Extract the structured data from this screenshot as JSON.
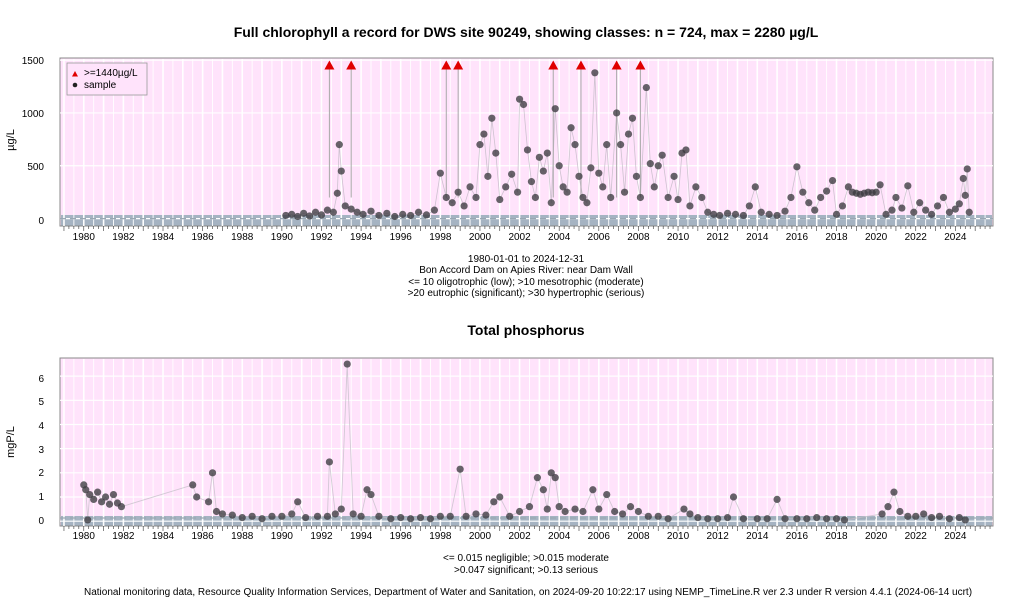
{
  "charts": {
    "chlorophyll": {
      "title": "Full chlorophyll a record for DWS site 90249, showing classes: n = 724, max = 2280 µg/L",
      "ylabel": "µg/L",
      "yticks": [
        "0",
        "500",
        "1000",
        "1500"
      ],
      "legend": [
        ">=1440µg/L",
        "sample"
      ],
      "caption_lines": [
        "1980-01-01 to 2024-12-31",
        "Bon Accord Dam on Apies River: near Dam Wall",
        "<= 10 oligotrophic (low); >10 mesotrophic (moderate)",
        ">20 eutrophic (significant); >30 hypertrophic (serious)"
      ]
    },
    "phosphorus": {
      "title": "Total phosphorus",
      "ylabel": "mgP/L",
      "yticks": [
        "0",
        "1",
        "2",
        "3",
        "4",
        "5",
        "6"
      ],
      "caption_lines": [
        "<= 0.015 negligible; >0.015 moderate",
        ">0.047 significant; >0.13 serious"
      ]
    },
    "xticks": [
      "1980",
      "1982",
      "1984",
      "1986",
      "1988",
      "1990",
      "1992",
      "1994",
      "1996",
      "1998",
      "2000",
      "2002",
      "2004",
      "2006",
      "2008",
      "2010",
      "2012",
      "2014",
      "2016",
      "2018",
      "2020",
      "2022",
      "2024"
    ]
  },
  "footer": "National monitoring data, Resource Quality Information Services, Department of Water and Sanitation, on 2024-09-20 10:22:17 using NEMP_TimeLine.R ver 2.3 under R version 4.4.1 (2024-06-14 ucrt)",
  "chart_data": [
    {
      "type": "scatter",
      "title": "Full chlorophyll a record for DWS site 90249, showing classes: n = 724, max = 2280 µg/L",
      "xlabel": "",
      "ylabel": "µg/L",
      "xlim": [
        1978.8,
        2025.9
      ],
      "ylim": [
        -70,
        1520
      ],
      "grid": true,
      "legend_position": "top-left",
      "series": [
        {
          "name": "sample",
          "points": [
            [
              1990.2,
              30
            ],
            [
              1990.5,
              40
            ],
            [
              1990.8,
              20
            ],
            [
              1991.1,
              50
            ],
            [
              1991.4,
              25
            ],
            [
              1991.7,
              60
            ],
            [
              1992.0,
              35
            ],
            [
              1992.3,
              80
            ],
            [
              1992.6,
              60
            ],
            [
              1992.8,
              240
            ],
            [
              1992.9,
              700
            ],
            [
              1993.0,
              450
            ],
            [
              1993.2,
              120
            ],
            [
              1993.5,
              90
            ],
            [
              1993.8,
              60
            ],
            [
              1994.1,
              40
            ],
            [
              1994.5,
              70
            ],
            [
              1994.9,
              30
            ],
            [
              1995.3,
              50
            ],
            [
              1995.7,
              20
            ],
            [
              1996.1,
              40
            ],
            [
              1996.5,
              30
            ],
            [
              1996.9,
              60
            ],
            [
              1997.3,
              35
            ],
            [
              1997.7,
              80
            ],
            [
              1998.0,
              430
            ],
            [
              1998.3,
              200
            ],
            [
              1998.6,
              150
            ],
            [
              1998.9,
              250
            ],
            [
              1999.2,
              120
            ],
            [
              1999.5,
              300
            ],
            [
              1999.8,
              200
            ],
            [
              2000.0,
              700
            ],
            [
              2000.2,
              800
            ],
            [
              2000.4,
              400
            ],
            [
              2000.6,
              950
            ],
            [
              2000.8,
              620
            ],
            [
              2001.0,
              180
            ],
            [
              2001.3,
              300
            ],
            [
              2001.6,
              420
            ],
            [
              2001.9,
              250
            ],
            [
              2002.0,
              1130
            ],
            [
              2002.2,
              1080
            ],
            [
              2002.4,
              650
            ],
            [
              2002.6,
              350
            ],
            [
              2002.8,
              200
            ],
            [
              2003.0,
              580
            ],
            [
              2003.2,
              450
            ],
            [
              2003.4,
              620
            ],
            [
              2003.6,
              150
            ],
            [
              2003.8,
              1040
            ],
            [
              2004.0,
              500
            ],
            [
              2004.2,
              300
            ],
            [
              2004.4,
              250
            ],
            [
              2004.6,
              860
            ],
            [
              2004.8,
              700
            ],
            [
              2005.0,
              400
            ],
            [
              2005.2,
              200
            ],
            [
              2005.4,
              150
            ],
            [
              2005.6,
              480
            ],
            [
              2005.8,
              1380
            ],
            [
              2006.0,
              430
            ],
            [
              2006.2,
              300
            ],
            [
              2006.4,
              700
            ],
            [
              2006.6,
              200
            ],
            [
              2006.9,
              1000
            ],
            [
              2007.1,
              700
            ],
            [
              2007.3,
              250
            ],
            [
              2007.5,
              800
            ],
            [
              2007.7,
              950
            ],
            [
              2007.9,
              400
            ],
            [
              2008.1,
              200
            ],
            [
              2008.4,
              1240
            ],
            [
              2008.6,
              520
            ],
            [
              2008.8,
              300
            ],
            [
              2009.0,
              500
            ],
            [
              2009.2,
              600
            ],
            [
              2009.5,
              200
            ],
            [
              2009.8,
              400
            ],
            [
              2010.0,
              180
            ],
            [
              2010.2,
              620
            ],
            [
              2010.4,
              650
            ],
            [
              2010.6,
              120
            ],
            [
              2010.9,
              300
            ],
            [
              2011.2,
              200
            ],
            [
              2011.5,
              60
            ],
            [
              2011.8,
              40
            ],
            [
              2012.1,
              30
            ],
            [
              2012.5,
              50
            ],
            [
              2012.9,
              40
            ],
            [
              2013.3,
              30
            ],
            [
              2013.6,
              120
            ],
            [
              2013.9,
              300
            ],
            [
              2014.2,
              60
            ],
            [
              2014.6,
              40
            ],
            [
              2015.0,
              30
            ],
            [
              2015.4,
              70
            ],
            [
              2015.7,
              200
            ],
            [
              2016.0,
              490
            ],
            [
              2016.3,
              250
            ],
            [
              2016.6,
              150
            ],
            [
              2016.9,
              80
            ],
            [
              2017.2,
              200
            ],
            [
              2017.5,
              260
            ],
            [
              2017.8,
              360
            ],
            [
              2018.0,
              40
            ],
            [
              2018.3,
              120
            ],
            [
              2018.6,
              300
            ],
            [
              2018.8,
              250
            ],
            [
              2019.0,
              240
            ],
            [
              2019.2,
              230
            ],
            [
              2019.4,
              240
            ],
            [
              2019.6,
              250
            ],
            [
              2019.8,
              245
            ],
            [
              2020.0,
              250
            ],
            [
              2020.2,
              320
            ],
            [
              2020.5,
              40
            ],
            [
              2020.8,
              80
            ],
            [
              2021.0,
              200
            ],
            [
              2021.3,
              100
            ],
            [
              2021.6,
              310
            ],
            [
              2021.9,
              60
            ],
            [
              2022.2,
              150
            ],
            [
              2022.5,
              80
            ],
            [
              2022.8,
              40
            ],
            [
              2023.1,
              120
            ],
            [
              2023.4,
              200
            ],
            [
              2023.7,
              60
            ],
            [
              2024.0,
              90
            ],
            [
              2024.2,
              140
            ],
            [
              2024.4,
              380
            ],
            [
              2024.5,
              220
            ],
            [
              2024.6,
              470
            ],
            [
              2024.7,
              60
            ]
          ]
        },
        {
          "name": ">=1440µg/L",
          "points": [
            [
              1992.4,
              1440
            ],
            [
              1993.5,
              1440
            ],
            [
              1998.3,
              1440
            ],
            [
              1998.9,
              1440
            ],
            [
              2003.7,
              1440
            ],
            [
              2005.1,
              1440
            ],
            [
              2006.9,
              1440
            ],
            [
              2008.1,
              1440
            ]
          ]
        }
      ]
    },
    {
      "type": "scatter",
      "title": "Total phosphorus",
      "xlabel": "",
      "ylabel": "mgP/L",
      "xlim": [
        1978.8,
        2025.9
      ],
      "ylim": [
        -0.2,
        6.75
      ],
      "grid": true,
      "series": [
        {
          "name": "",
          "points": [
            [
              1980.0,
              1.5
            ],
            [
              1980.1,
              1.3
            ],
            [
              1980.2,
              0.05
            ],
            [
              1980.3,
              1.1
            ],
            [
              1980.5,
              0.9
            ],
            [
              1980.7,
              1.2
            ],
            [
              1980.9,
              0.8
            ],
            [
              1981.1,
              1.0
            ],
            [
              1981.3,
              0.7
            ],
            [
              1981.5,
              1.1
            ],
            [
              1981.7,
              0.75
            ],
            [
              1981.9,
              0.6
            ],
            [
              1985.5,
              1.5
            ],
            [
              1985.7,
              1.0
            ],
            [
              1986.3,
              0.8
            ],
            [
              1986.5,
              2.0
            ],
            [
              1986.7,
              0.4
            ],
            [
              1987.0,
              0.3
            ],
            [
              1987.5,
              0.25
            ],
            [
              1988.0,
              0.15
            ],
            [
              1988.5,
              0.2
            ],
            [
              1989.0,
              0.1
            ],
            [
              1989.5,
              0.2
            ],
            [
              1990.0,
              0.2
            ],
            [
              1990.5,
              0.3
            ],
            [
              1990.8,
              0.8
            ],
            [
              1991.2,
              0.15
            ],
            [
              1991.8,
              0.2
            ],
            [
              1992.3,
              0.2
            ],
            [
              1992.4,
              2.45
            ],
            [
              1992.7,
              0.3
            ],
            [
              1993.0,
              0.5
            ],
            [
              1993.3,
              6.5
            ],
            [
              1993.6,
              0.3
            ],
            [
              1994.0,
              0.2
            ],
            [
              1994.3,
              1.3
            ],
            [
              1994.5,
              1.1
            ],
            [
              1994.9,
              0.2
            ],
            [
              1995.5,
              0.1
            ],
            [
              1996.0,
              0.15
            ],
            [
              1996.5,
              0.1
            ],
            [
              1997.0,
              0.15
            ],
            [
              1997.5,
              0.1
            ],
            [
              1998.0,
              0.2
            ],
            [
              1998.5,
              0.2
            ],
            [
              1999.0,
              2.15
            ],
            [
              1999.3,
              0.2
            ],
            [
              1999.8,
              0.3
            ],
            [
              2000.3,
              0.25
            ],
            [
              2000.7,
              0.8
            ],
            [
              2001.0,
              1.0
            ],
            [
              2001.5,
              0.2
            ],
            [
              2002.0,
              0.4
            ],
            [
              2002.5,
              0.6
            ],
            [
              2002.9,
              1.8
            ],
            [
              2003.2,
              1.3
            ],
            [
              2003.4,
              0.5
            ],
            [
              2003.6,
              2.0
            ],
            [
              2003.8,
              1.8
            ],
            [
              2004.0,
              0.6
            ],
            [
              2004.3,
              0.4
            ],
            [
              2004.8,
              0.5
            ],
            [
              2005.2,
              0.4
            ],
            [
              2005.7,
              1.3
            ],
            [
              2006.0,
              0.5
            ],
            [
              2006.4,
              1.1
            ],
            [
              2006.8,
              0.4
            ],
            [
              2007.2,
              0.3
            ],
            [
              2007.6,
              0.6
            ],
            [
              2008.0,
              0.4
            ],
            [
              2008.5,
              0.2
            ],
            [
              2009.0,
              0.2
            ],
            [
              2009.5,
              0.1
            ],
            [
              2010.3,
              0.5
            ],
            [
              2010.6,
              0.3
            ],
            [
              2011.0,
              0.15
            ],
            [
              2011.5,
              0.1
            ],
            [
              2012.0,
              0.1
            ],
            [
              2012.5,
              0.15
            ],
            [
              2012.8,
              1.0
            ],
            [
              2013.3,
              0.1
            ],
            [
              2014.0,
              0.1
            ],
            [
              2014.5,
              0.1
            ],
            [
              2015.0,
              0.9
            ],
            [
              2015.4,
              0.1
            ],
            [
              2016.0,
              0.1
            ],
            [
              2016.5,
              0.1
            ],
            [
              2017.0,
              0.15
            ],
            [
              2017.5,
              0.1
            ],
            [
              2018.0,
              0.1
            ],
            [
              2018.4,
              0.05
            ],
            [
              2020.3,
              0.3
            ],
            [
              2020.6,
              0.6
            ],
            [
              2020.9,
              1.2
            ],
            [
              2021.2,
              0.4
            ],
            [
              2021.6,
              0.2
            ],
            [
              2022.0,
              0.2
            ],
            [
              2022.4,
              0.3
            ],
            [
              2022.8,
              0.15
            ],
            [
              2023.2,
              0.2
            ],
            [
              2023.7,
              0.1
            ],
            [
              2024.2,
              0.15
            ],
            [
              2024.5,
              0.05
            ]
          ]
        }
      ]
    }
  ]
}
